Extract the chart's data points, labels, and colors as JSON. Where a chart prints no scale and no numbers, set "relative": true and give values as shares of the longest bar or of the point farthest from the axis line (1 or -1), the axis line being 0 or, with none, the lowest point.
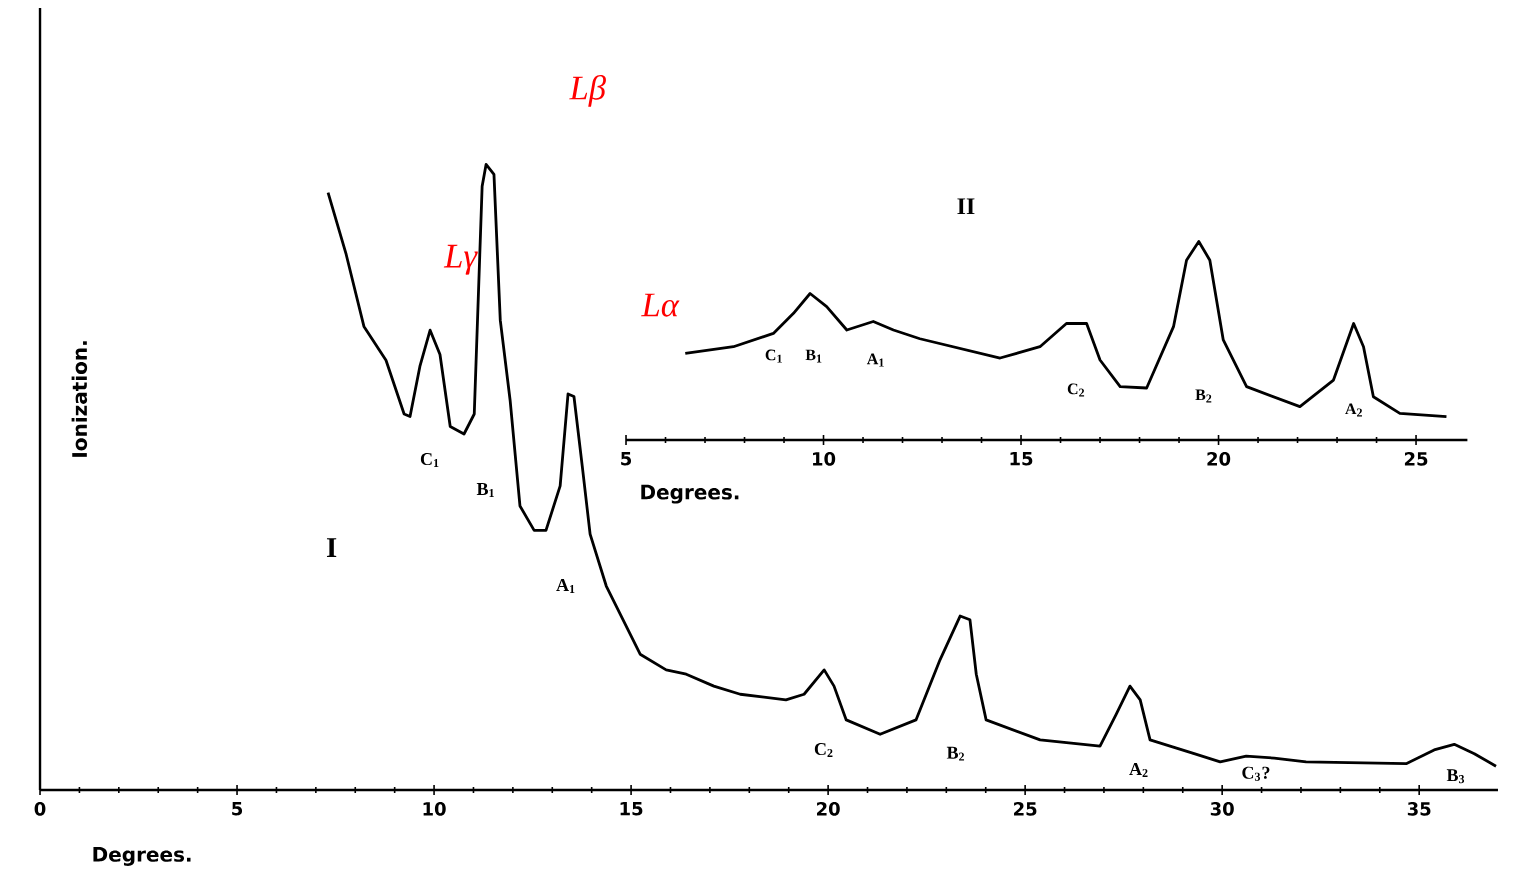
{
  "chart_data": [
    {
      "type": "line",
      "title": "I",
      "xlabel": "Degrees.",
      "ylabel": "Ionization.",
      "relative": true,
      "xlim": [
        0,
        37
      ],
      "xticks": [
        0,
        5,
        10,
        15,
        20,
        25,
        30,
        35
      ],
      "color": "#000000",
      "x": [
        7.31,
        7.77,
        8.22,
        8.78,
        9.24,
        9.39,
        9.64,
        9.9,
        10.15,
        10.41,
        10.76,
        11.02,
        11.22,
        11.32,
        11.52,
        11.68,
        11.93,
        12.18,
        12.54,
        12.84,
        13.2,
        13.4,
        13.55,
        13.76,
        13.96,
        14.37,
        15.23,
        15.89,
        16.4,
        17.1,
        17.77,
        18.93,
        19.39,
        19.9,
        20.15,
        20.46,
        21.32,
        22.23,
        22.84,
        23.35,
        23.6,
        23.76,
        24.01,
        25.38,
        26.9,
        27.31,
        27.66,
        27.92,
        28.17,
        29.29,
        29.95,
        30.61,
        31.32,
        32.13,
        34.67,
        35.38,
        35.89,
        36.4,
        36.95
      ],
      "values": [
        0.955,
        0.856,
        0.741,
        0.687,
        0.601,
        0.597,
        0.677,
        0.735,
        0.696,
        0.581,
        0.569,
        0.601,
        0.965,
        1.0,
        0.984,
        0.751,
        0.623,
        0.454,
        0.415,
        0.415,
        0.486,
        0.633,
        0.629,
        0.518,
        0.409,
        0.326,
        0.217,
        0.192,
        0.185,
        0.166,
        0.153,
        0.144,
        0.153,
        0.192,
        0.166,
        0.112,
        0.089,
        0.112,
        0.208,
        0.278,
        0.272,
        0.185,
        0.112,
        0.08,
        0.07,
        0.121,
        0.166,
        0.144,
        0.08,
        0.058,
        0.045,
        0.054,
        0.051,
        0.045,
        0.042,
        0.064,
        0.073,
        0.058,
        0.038
      ],
      "annotations": [
        "Lβ",
        "Lγ",
        "Lα",
        "C$_{1}$",
        "B$_{1}$",
        "A$_{1}$",
        "C$_{2}$",
        "B$_{2}$",
        "A$_{2}$",
        "C$_{3}$?",
        "B$_{3}$"
      ]
    },
    {
      "type": "line",
      "title": "II",
      "xlabel": "Degrees.",
      "relative": true,
      "xlim": [
        5,
        26.3
      ],
      "xticks": [
        5,
        10,
        15,
        20,
        25
      ],
      "color": "#000000",
      "x": [
        6.5,
        7.72,
        8.73,
        9.24,
        9.66,
        10.08,
        10.59,
        11.26,
        11.77,
        12.44,
        14.47,
        15.48,
        16.15,
        16.66,
        17.0,
        17.51,
        18.18,
        18.86,
        19.19,
        19.5,
        19.78,
        20.12,
        20.71,
        22.06,
        22.91,
        23.42,
        23.67,
        23.92,
        24.59,
        25.77
      ],
      "values": [
        0.436,
        0.47,
        0.537,
        0.638,
        0.738,
        0.672,
        0.554,
        0.597,
        0.554,
        0.51,
        0.413,
        0.47,
        0.587,
        0.587,
        0.403,
        0.269,
        0.262,
        0.571,
        0.906,
        1.0,
        0.906,
        0.504,
        0.269,
        0.168,
        0.302,
        0.587,
        0.47,
        0.218,
        0.134,
        0.118
      ],
      "annotations": [
        "C$_{1}$",
        "B$_{1}$",
        "A$_{1}$",
        "C$_{2}$",
        "B$_{2}$",
        "A$_{2}$"
      ]
    }
  ]
}
